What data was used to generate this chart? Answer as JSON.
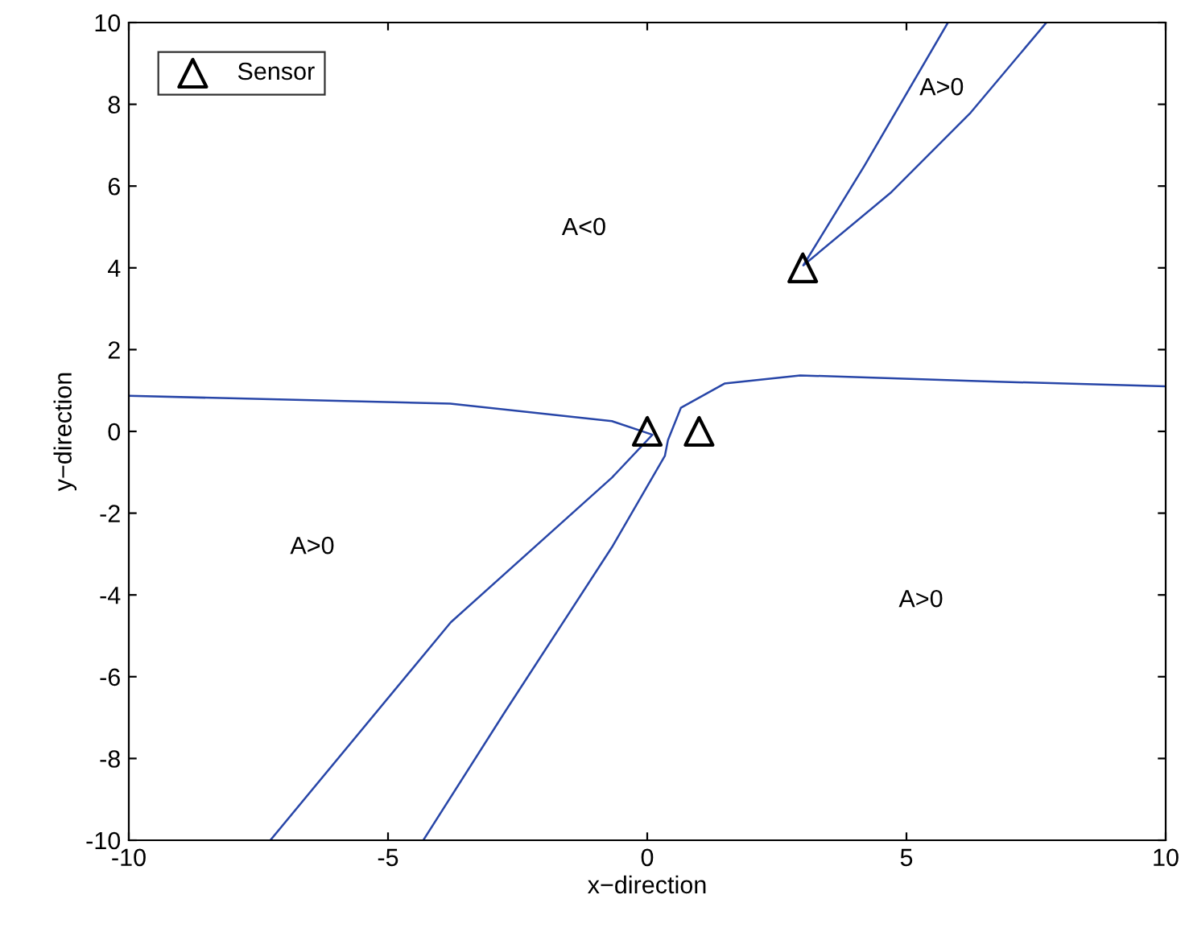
{
  "chart_data": {
    "type": "line",
    "xlabel": "x−direction",
    "ylabel": "y−direction",
    "xlim": [
      -10,
      10
    ],
    "ylim": [
      -10,
      10
    ],
    "xticks": [
      -10,
      -5,
      0,
      5,
      10
    ],
    "yticks": [
      -10,
      -8,
      -6,
      -4,
      -2,
      0,
      2,
      4,
      6,
      8,
      10
    ],
    "grid": false,
    "legend": "top left",
    "line_style": "solid",
    "series": [
      {
        "color": "#2846a8",
        "x": [
          -10,
          -3.8,
          -0.68,
          0.1,
          -0.68,
          -3.79,
          -7.27
        ],
        "values": [
          0.87,
          0.68,
          0.25,
          -0.08,
          -1.13,
          -4.67,
          -10
        ]
      },
      {
        "color": "#2846a8",
        "x": [
          10,
          6.37,
          2.95,
          1.49,
          0.65,
          0.4,
          0.34,
          -0.68,
          -2.76,
          -4.32
        ],
        "values": [
          1.1,
          1.23,
          1.37,
          1.17,
          0.58,
          -0.21,
          -0.6,
          -2.83,
          -6.89,
          -10
        ]
      },
      {
        "color": "#2846a8",
        "x": [
          5.8,
          4.19,
          3.01,
          4.69,
          6.24,
          7.7
        ],
        "values": [
          10,
          6.5,
          4.06,
          5.83,
          7.8,
          10
        ]
      },
      {
        "type": "scatter",
        "name": "Sensor",
        "color": "#000000",
        "marker": "triangle",
        "x": [
          0,
          1,
          3
        ],
        "values": [
          0,
          0,
          4
        ]
      }
    ],
    "annotations": [
      "A<0",
      "A>0",
      "A>0",
      "A>0"
    ]
  }
}
